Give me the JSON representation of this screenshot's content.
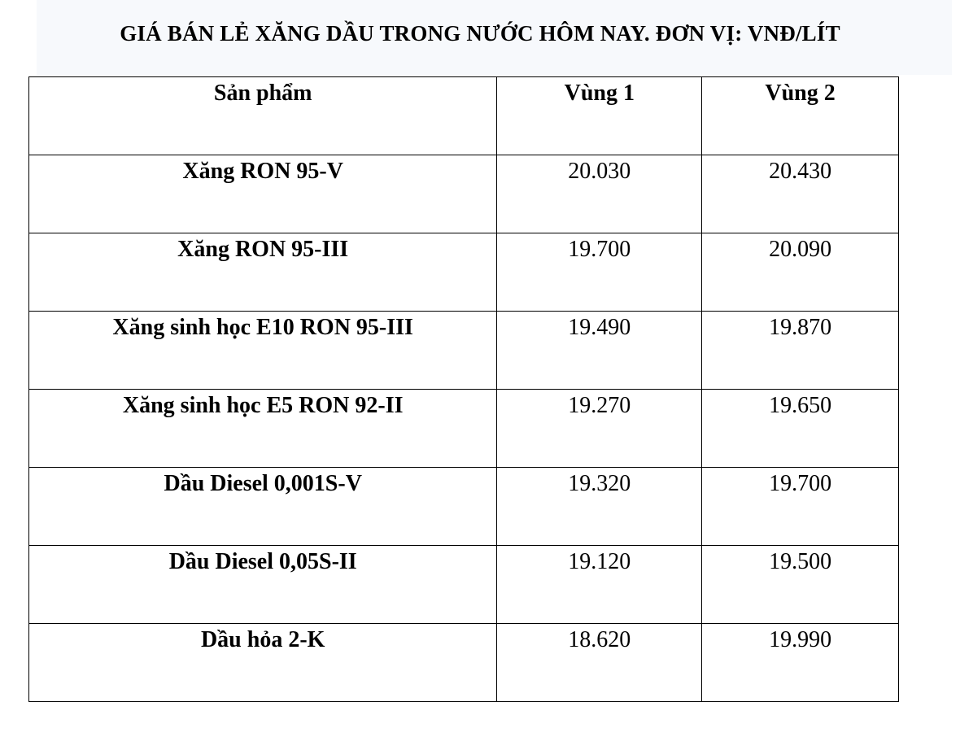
{
  "title": "GIÁ BÁN LẺ XĂNG DẦU TRONG NƯỚC HÔM NAY. ĐƠN VỊ: VNĐ/LÍT",
  "table": {
    "headers": [
      "Sản phẩm",
      "Vùng 1",
      "Vùng 2"
    ],
    "rows": [
      [
        "Xăng RON 95-V",
        "20.030",
        "20.430"
      ],
      [
        "Xăng RON 95-III",
        "19.700",
        "20.090"
      ],
      [
        "Xăng sinh học E10 RON 95-III",
        "19.490",
        "19.870"
      ],
      [
        "Xăng sinh học E5 RON 92-II",
        "19.270",
        "19.650"
      ],
      [
        "Dầu Diesel 0,001S-V",
        "19.320",
        "19.700"
      ],
      [
        "Dầu Diesel 0,05S-II",
        "19.120",
        "19.500"
      ],
      [
        "Dầu hỏa 2-K",
        "18.620",
        "19.990"
      ]
    ]
  }
}
